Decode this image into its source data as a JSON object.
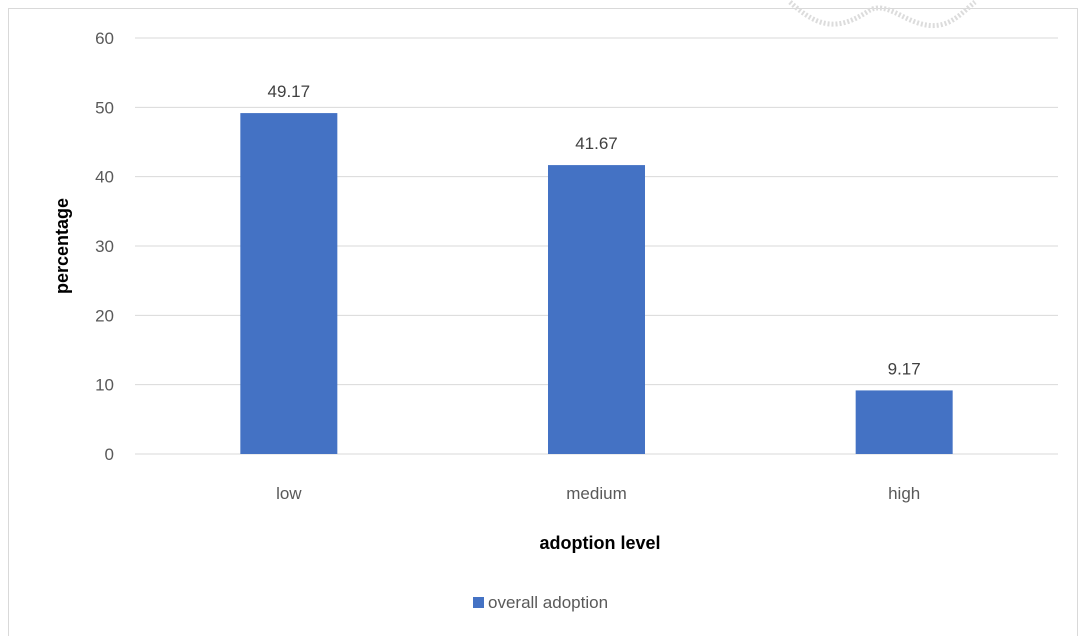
{
  "chart_data": {
    "type": "bar",
    "categories": [
      "low",
      "medium",
      "high"
    ],
    "series": [
      {
        "name": "overall adoption",
        "values": [
          49.17,
          41.67,
          9.17
        ],
        "color": "#4472c4"
      }
    ],
    "data_labels": [
      "49.17",
      "41.67",
      "9.17"
    ],
    "title": "",
    "xlabel": "adoption level",
    "ylabel": "percentage",
    "ylim": [
      0,
      60
    ],
    "yticks": [
      "0",
      "10",
      "20",
      "30",
      "40",
      "50",
      "60"
    ],
    "grid": true,
    "legend": "bottom",
    "colors": {
      "bar": "#4472c4",
      "grid": "#d9d9d9"
    }
  }
}
